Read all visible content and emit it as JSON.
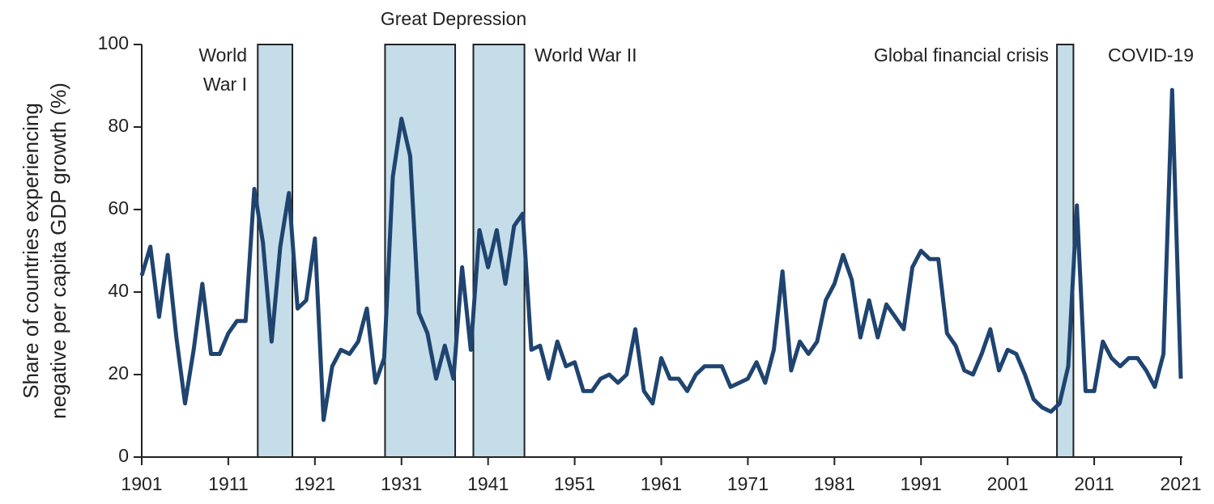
{
  "chart_data": {
    "type": "line",
    "y_label_lines": [
      "Share of countries experiencing",
      "negative per capita GDP growth (%)"
    ],
    "x": [
      1901,
      1902,
      1903,
      1904,
      1905,
      1906,
      1907,
      1908,
      1909,
      1910,
      1911,
      1912,
      1913,
      1914,
      1915,
      1916,
      1917,
      1918,
      1919,
      1920,
      1921,
      1922,
      1923,
      1924,
      1925,
      1926,
      1927,
      1928,
      1929,
      1930,
      1931,
      1932,
      1933,
      1934,
      1935,
      1936,
      1937,
      1938,
      1939,
      1940,
      1941,
      1942,
      1943,
      1944,
      1945,
      1946,
      1947,
      1948,
      1949,
      1950,
      1951,
      1952,
      1953,
      1954,
      1955,
      1956,
      1957,
      1958,
      1959,
      1960,
      1961,
      1962,
      1963,
      1964,
      1965,
      1966,
      1967,
      1968,
      1969,
      1970,
      1971,
      1972,
      1973,
      1974,
      1975,
      1976,
      1977,
      1978,
      1979,
      1980,
      1981,
      1982,
      1983,
      1984,
      1985,
      1986,
      1987,
      1988,
      1989,
      1990,
      1991,
      1992,
      1993,
      1994,
      1995,
      1996,
      1997,
      1998,
      1999,
      2000,
      2001,
      2002,
      2003,
      2004,
      2005,
      2006,
      2007,
      2008,
      2009,
      2010,
      2011,
      2012,
      2013,
      2014,
      2015,
      2016,
      2017,
      2018,
      2019,
      2020,
      2021
    ],
    "series": [
      {
        "color": "#1f4470",
        "values": [
          44,
          51,
          34,
          49,
          29,
          13,
          26,
          42,
          25,
          25,
          30,
          33,
          33,
          65,
          52,
          28,
          51,
          64,
          36,
          38,
          53,
          9,
          22,
          26,
          25,
          28,
          36,
          18,
          24,
          68,
          82,
          73,
          35,
          30,
          19,
          27,
          19,
          46,
          26,
          55,
          46,
          55,
          42,
          56,
          59,
          26,
          27,
          19,
          28,
          22,
          23,
          16,
          16,
          19,
          20,
          18,
          20,
          31,
          16,
          13,
          24,
          19,
          19,
          16,
          20,
          22,
          22,
          22,
          17,
          18,
          19,
          23,
          18,
          26,
          45,
          21,
          28,
          25,
          28,
          38,
          42,
          49,
          43,
          29,
          38,
          29,
          37,
          34,
          31,
          46,
          50,
          48,
          48,
          30,
          27,
          21,
          20,
          25,
          31,
          21,
          26,
          25,
          20,
          14,
          12,
          11,
          13,
          22,
          61,
          16,
          16,
          28,
          24,
          22,
          24,
          24,
          21,
          17,
          25,
          89,
          19
        ]
      }
    ],
    "periods": [
      {
        "start": 1914.4,
        "end": 1918.4,
        "lines": [
          "World",
          "War I"
        ]
      },
      {
        "start": 1929.1,
        "end": 1937.2,
        "lines": [
          "Great Depression"
        ]
      },
      {
        "start": 1939.3,
        "end": 1945.2,
        "lines": [
          "World War II"
        ]
      },
      {
        "start": 2006.7,
        "end": 2008.6,
        "lines": [
          "Global financial crisis"
        ]
      }
    ],
    "annotations": [
      {
        "lines": [
          "COVID-19"
        ]
      }
    ],
    "band_color": "#c5dde9",
    "xlim": [
      1901,
      2021
    ],
    "xticks": [
      1901,
      1911,
      1921,
      1931,
      1941,
      1951,
      1961,
      1971,
      1981,
      1991,
      2001,
      2011,
      2021
    ],
    "ylim": [
      0,
      100
    ],
    "yticks": [
      0,
      20,
      40,
      60,
      80,
      100
    ]
  }
}
